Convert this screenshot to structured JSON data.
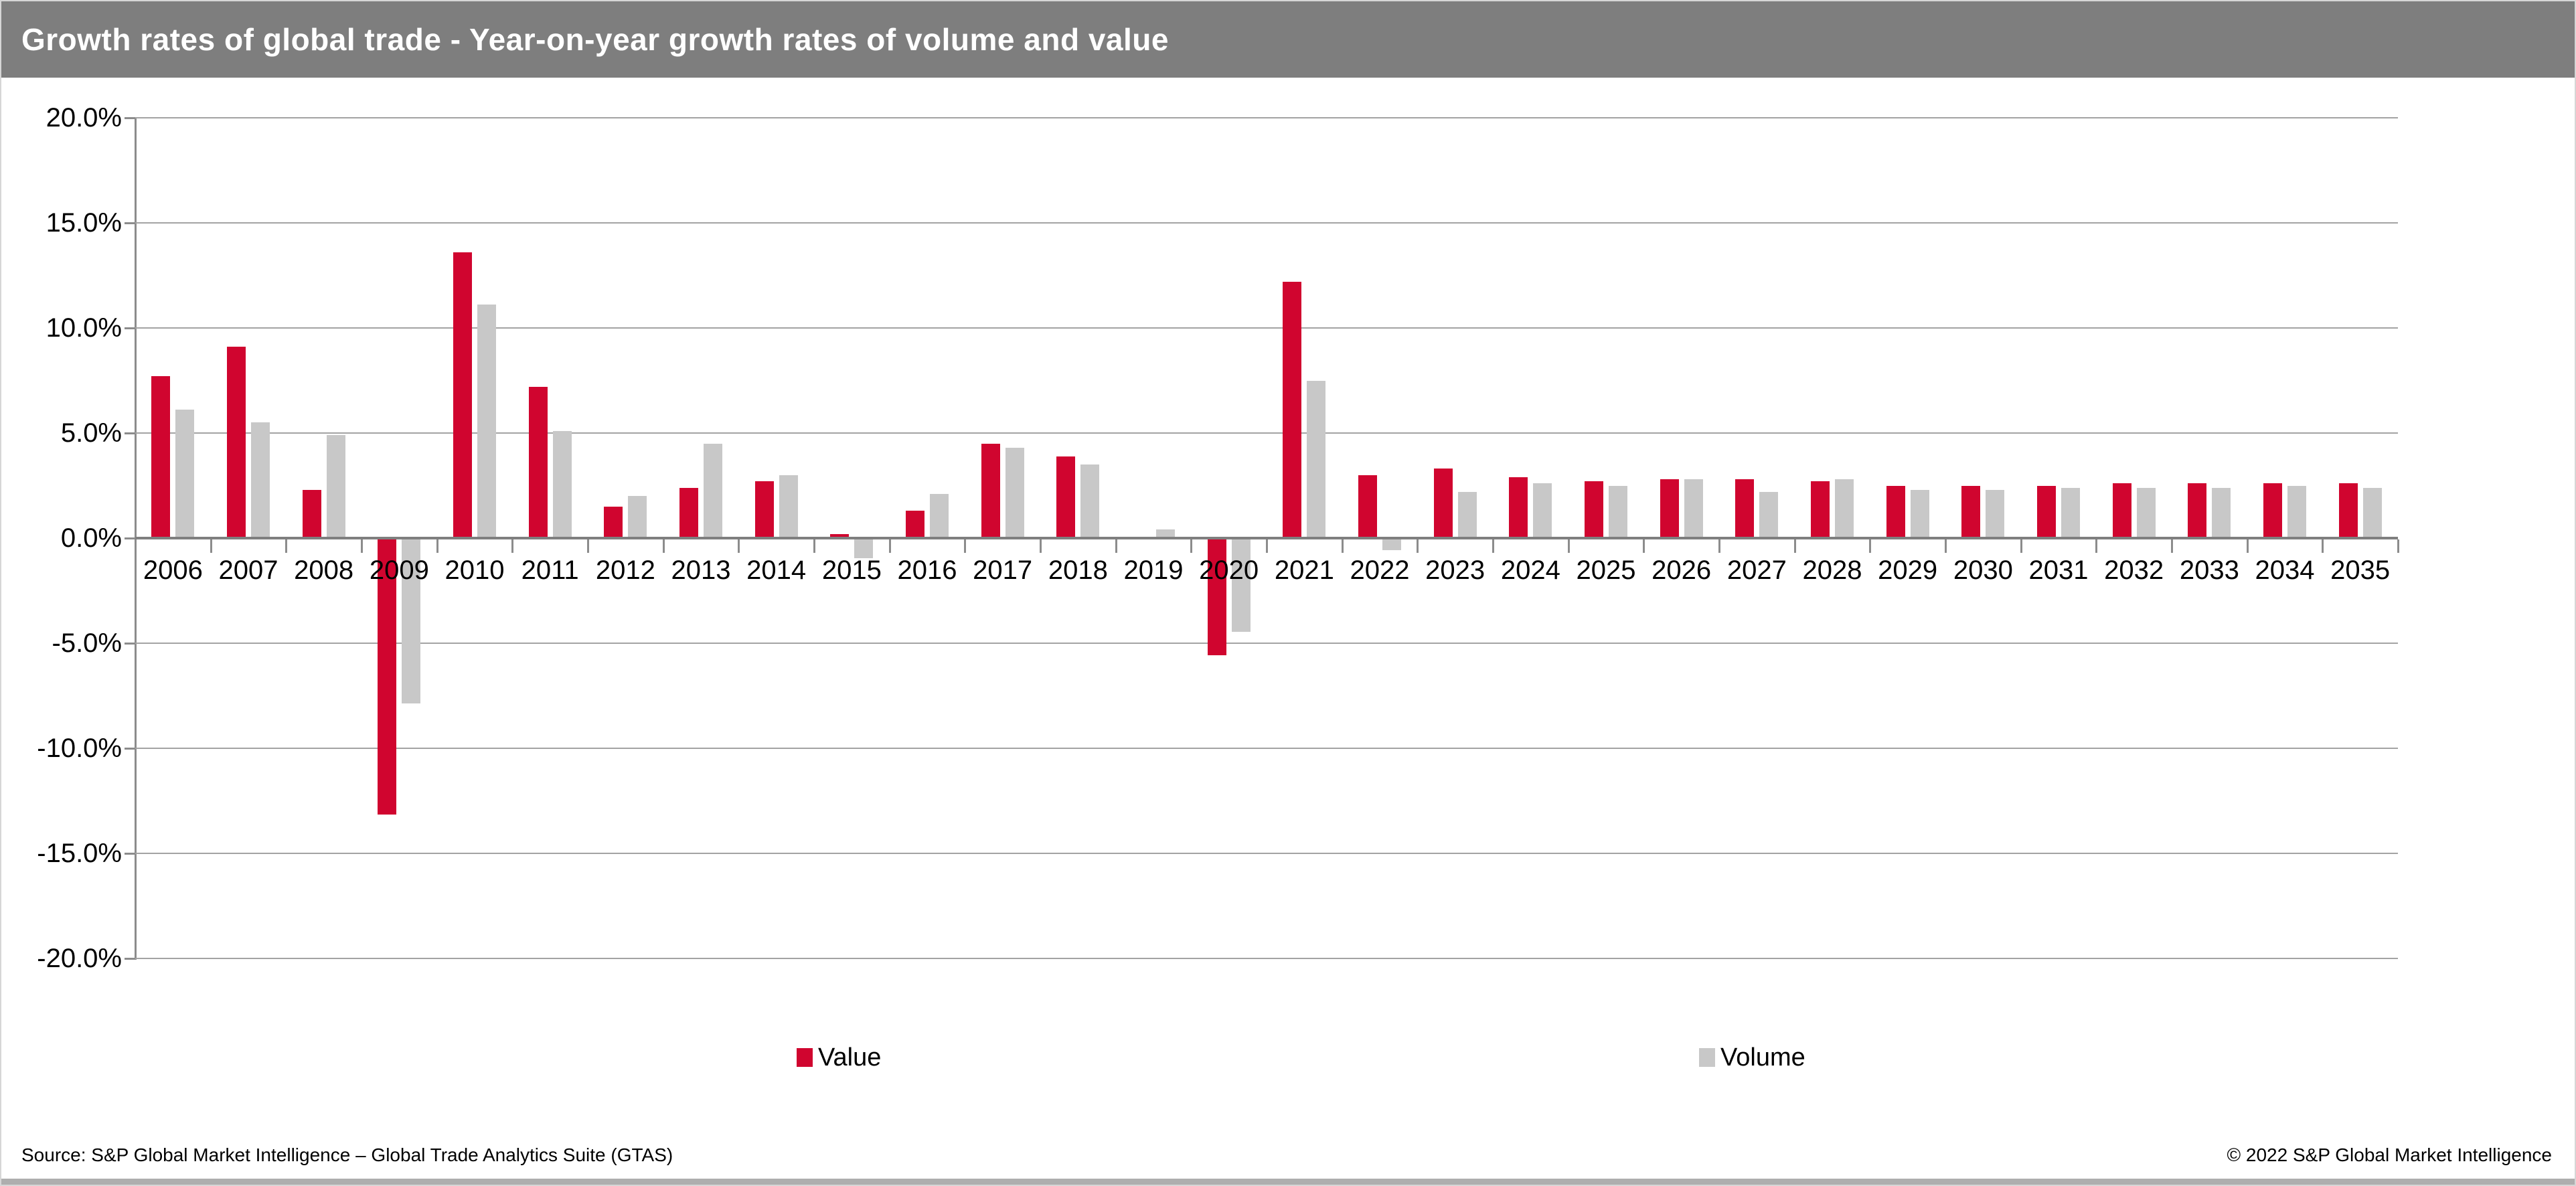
{
  "header": {
    "title": "Growth rates of global trade - Year-on-year growth rates of volume and value"
  },
  "colors": {
    "title_bg": "#7e7e7e",
    "title_text": "#ffffff",
    "value_bar": "#d0052f",
    "volume_bar": "#c8c8c8",
    "gridline": "#a3a3a3",
    "axis": "#7f7f7f"
  },
  "chart_data": {
    "type": "bar",
    "title": "Growth rates of global trade - Year-on-year growth rates of volume and value",
    "categories": [
      "2006",
      "2007",
      "2008",
      "2009",
      "2010",
      "2011",
      "2012",
      "2013",
      "2014",
      "2015",
      "2016",
      "2017",
      "2018",
      "2019",
      "2020",
      "2021",
      "2022",
      "2023",
      "2024",
      "2025",
      "2026",
      "2027",
      "2028",
      "2029",
      "2030",
      "2031",
      "2032",
      "2033",
      "2034",
      "2035"
    ],
    "series": [
      {
        "name": "Value",
        "color_key": "value_bar",
        "values": [
          7.7,
          9.1,
          2.3,
          -13.1,
          13.6,
          7.2,
          1.5,
          2.4,
          2.7,
          0.2,
          1.3,
          4.5,
          3.9,
          0.0,
          -5.5,
          12.2,
          3.0,
          3.3,
          2.9,
          2.7,
          2.8,
          2.8,
          2.7,
          2.5,
          2.5,
          2.5,
          2.6,
          2.6,
          2.6,
          2.6
        ]
      },
      {
        "name": "Volume",
        "color_key": "volume_bar",
        "values": [
          6.1,
          5.5,
          4.9,
          -7.8,
          11.1,
          5.1,
          2.0,
          4.5,
          3.0,
          -0.9,
          2.1,
          4.3,
          3.5,
          0.4,
          -4.4,
          7.5,
          -0.5,
          2.2,
          2.6,
          2.5,
          2.8,
          2.2,
          2.8,
          2.3,
          2.3,
          2.4,
          2.4,
          2.4,
          2.5,
          2.4
        ]
      }
    ],
    "xlabel": "",
    "ylabel": "",
    "ylim": [
      -20,
      20
    ],
    "ytick_labels": [
      "20.0%",
      "15.0%",
      "10.0%",
      "5.0%",
      "0.0%",
      "-5.0%",
      "-10.0%",
      "-15.0%",
      "-20.0%"
    ],
    "ytick_values": [
      20,
      15,
      10,
      5,
      0,
      -5,
      -10,
      -15,
      -20
    ],
    "grid": "horizontal",
    "legend_position": "bottom"
  },
  "legend": [
    {
      "label": "Value"
    },
    {
      "label": "Volume"
    }
  ],
  "footer": {
    "source": "Source: S&P Global Market Intelligence – Global Trade Analytics Suite (GTAS)",
    "copyright": "© 2022 S&P Global Market Intelligence"
  }
}
